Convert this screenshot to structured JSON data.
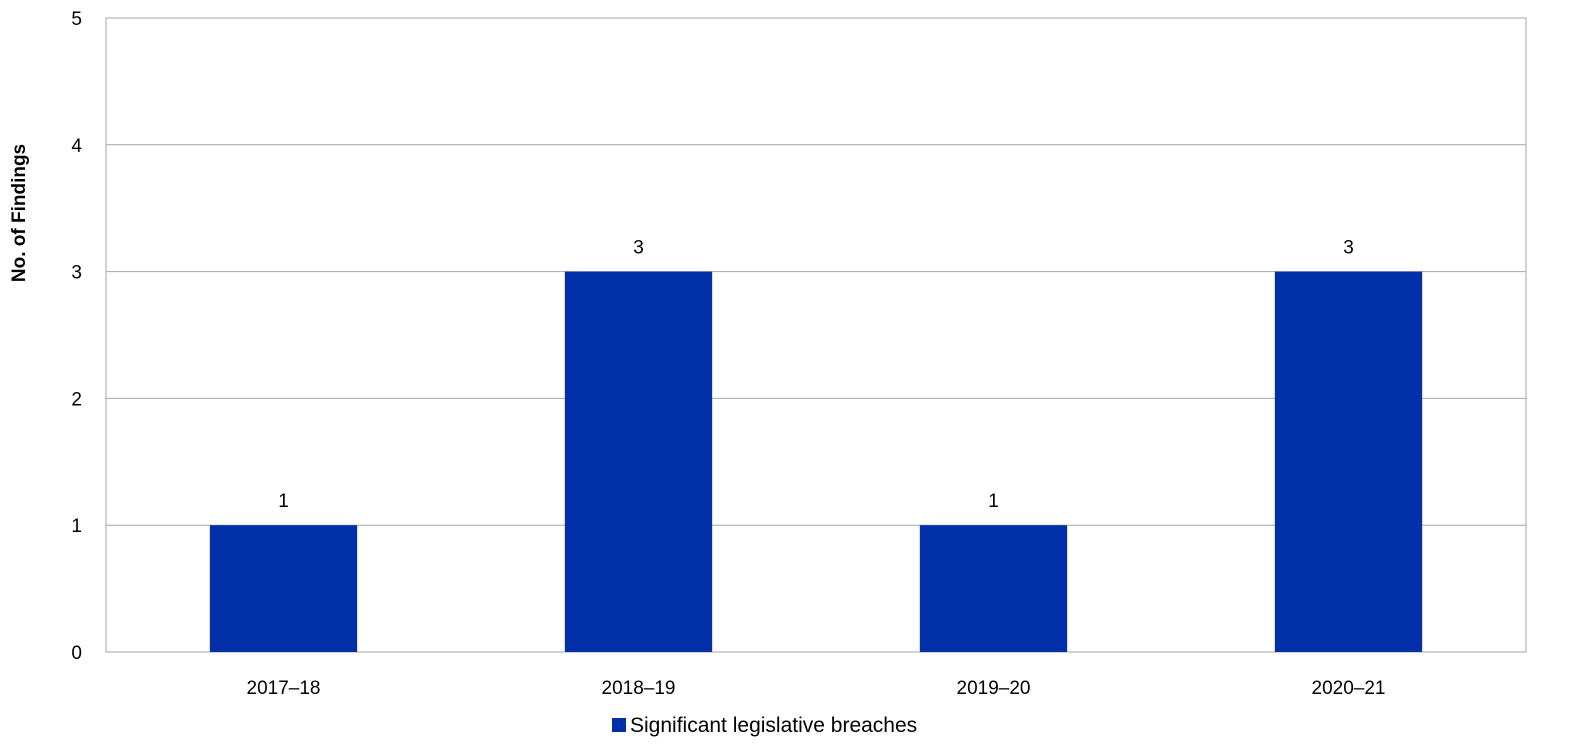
{
  "chart_data": {
    "type": "bar",
    "title": "",
    "xlabel": "",
    "ylabel": "No. of Findings",
    "categories": [
      "2017–18",
      "2018–19",
      "2019–20",
      "2020–21"
    ],
    "series": [
      {
        "name": "Significant legislative breaches",
        "values": [
          1,
          3,
          1,
          3
        ],
        "color": "#002fa7"
      }
    ],
    "ylim": [
      0,
      5
    ],
    "yticks": [
      "0",
      "1",
      "2",
      "3",
      "4",
      "5"
    ],
    "data_labels": [
      "1",
      "3",
      "1",
      "3"
    ],
    "grid": true,
    "legend_position": "bottom"
  }
}
